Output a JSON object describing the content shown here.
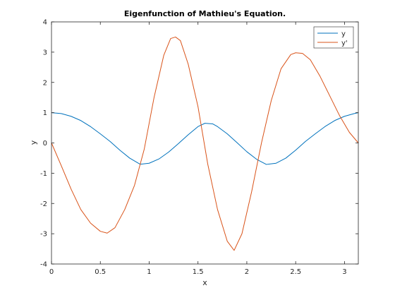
{
  "chart_data": {
    "type": "line",
    "title": "Eigenfunction of Mathieu's Equation.",
    "xlabel": "x",
    "ylabel": "y",
    "xlim": [
      0,
      3.14159
    ],
    "ylim": [
      -4,
      4
    ],
    "xticks": [
      0,
      0.5,
      1,
      1.5,
      2,
      2.5,
      3
    ],
    "xtick_labels": [
      "0",
      "0.5",
      "1",
      "1.5",
      "2",
      "2.5",
      "3"
    ],
    "yticks": [
      -4,
      -3,
      -2,
      -1,
      0,
      1,
      2,
      3,
      4
    ],
    "ytick_labels": [
      "-4",
      "-3",
      "-2",
      "-1",
      "0",
      "1",
      "2",
      "3",
      "4"
    ],
    "grid": false,
    "legend_position": "top-right",
    "series": [
      {
        "name": "y",
        "color": "#0072BD",
        "x": [
          0,
          0.1,
          0.2,
          0.3,
          0.4,
          0.5,
          0.6,
          0.7,
          0.8,
          0.9,
          0.92,
          1.0,
          1.1,
          1.2,
          1.3,
          1.4,
          1.5,
          1.571,
          1.65,
          1.7,
          1.8,
          1.9,
          2.0,
          2.1,
          2.2,
          2.3,
          2.4,
          2.5,
          2.6,
          2.7,
          2.8,
          2.9,
          3.0,
          3.1,
          3.1416
        ],
        "y": [
          1.0,
          0.97,
          0.88,
          0.74,
          0.54,
          0.3,
          0.05,
          -0.24,
          -0.5,
          -0.69,
          -0.7,
          -0.67,
          -0.53,
          -0.3,
          -0.02,
          0.27,
          0.54,
          0.65,
          0.63,
          0.54,
          0.3,
          0.01,
          -0.29,
          -0.54,
          -0.71,
          -0.67,
          -0.5,
          -0.24,
          0.05,
          0.3,
          0.54,
          0.74,
          0.88,
          0.97,
          1.0
        ]
      },
      {
        "name": "y'",
        "color": "#D95319",
        "x": [
          0,
          0.1,
          0.2,
          0.3,
          0.4,
          0.5,
          0.57,
          0.65,
          0.75,
          0.85,
          0.95,
          1.05,
          1.15,
          1.22,
          1.27,
          1.32,
          1.4,
          1.5,
          1.6,
          1.7,
          1.8,
          1.87,
          1.95,
          2.05,
          2.15,
          2.25,
          2.35,
          2.45,
          2.5,
          2.57,
          2.65,
          2.75,
          2.85,
          2.95,
          3.05,
          3.1416
        ],
        "y": [
          0,
          -0.75,
          -1.52,
          -2.2,
          -2.65,
          -2.92,
          -2.98,
          -2.8,
          -2.2,
          -1.4,
          -0.2,
          1.5,
          2.9,
          3.45,
          3.5,
          3.38,
          2.6,
          1.2,
          -0.7,
          -2.2,
          -3.25,
          -3.55,
          -3.0,
          -1.6,
          0.0,
          1.4,
          2.45,
          2.92,
          2.98,
          2.96,
          2.75,
          2.2,
          1.55,
          0.9,
          0.35,
          0.0
        ]
      }
    ]
  }
}
